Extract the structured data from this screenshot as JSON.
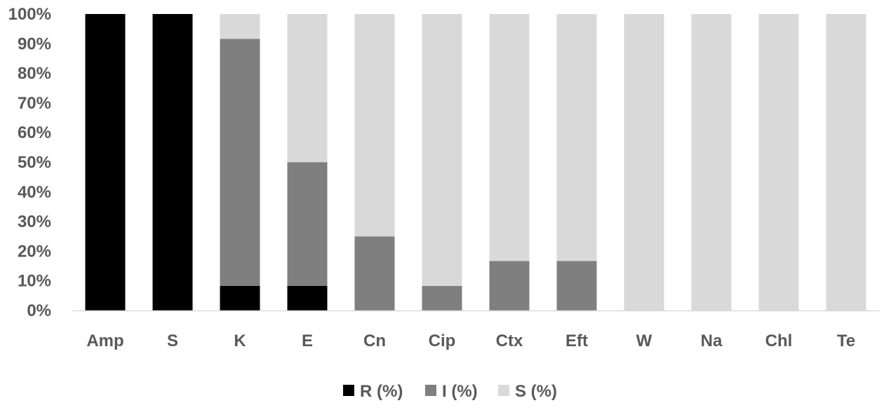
{
  "chart_data": {
    "type": "bar",
    "stacked": "percent",
    "categories": [
      "Amp",
      "S",
      "K",
      "E",
      "Cn",
      "Cip",
      "Ctx",
      "Eft",
      "W",
      "Na",
      "Chl",
      "Te"
    ],
    "series": [
      {
        "name": "R (%)",
        "color": "#000000",
        "values": [
          100,
          100,
          8.3,
          8.3,
          0,
          0,
          0,
          0,
          0,
          0,
          0,
          0
        ]
      },
      {
        "name": "I (%)",
        "color": "#7f7f7f",
        "values": [
          0,
          0,
          83.3,
          41.7,
          25,
          8.3,
          16.7,
          16.7,
          0,
          0,
          0,
          0
        ]
      },
      {
        "name": "S (%)",
        "color": "#d9d9d9",
        "values": [
          0,
          0,
          8.4,
          50,
          75,
          91.7,
          83.3,
          83.3,
          100,
          100,
          100,
          100
        ]
      }
    ],
    "y_ticks": [
      "0%",
      "10%",
      "20%",
      "30%",
      "40%",
      "50%",
      "60%",
      "70%",
      "80%",
      "90%",
      "100%"
    ],
    "ylim": [
      0,
      100
    ],
    "title": "",
    "xlabel": "",
    "ylabel": "",
    "grid": false,
    "legend_position": "bottom"
  }
}
